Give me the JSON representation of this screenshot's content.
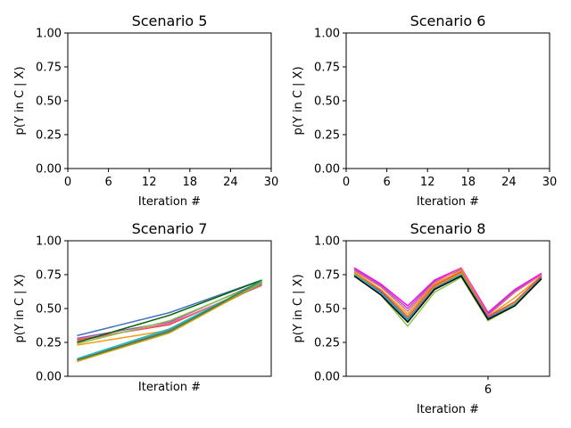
{
  "chart_data": [
    {
      "type": "line",
      "title": "Scenario 5",
      "xlabel": "Iteration #",
      "ylabel": "p(Y in C | X)",
      "xlim": [
        0,
        30
      ],
      "ylim": [
        0,
        1
      ],
      "xticks": [
        0,
        6,
        12,
        18,
        24,
        30
      ],
      "yticks": [
        0.0,
        0.25,
        0.5,
        0.75,
        1.0
      ],
      "ytick_labels": [
        "0.00",
        "0.25",
        "0.50",
        "0.75",
        "1.00"
      ],
      "x": [],
      "series": []
    },
    {
      "type": "line",
      "title": "Scenario 6",
      "xlabel": "Iteration #",
      "ylabel": "p(Y in C | X)",
      "xlim": [
        0,
        30
      ],
      "ylim": [
        0,
        1
      ],
      "xticks": [
        0,
        6,
        12,
        18,
        24,
        30
      ],
      "yticks": [
        0.0,
        0.25,
        0.5,
        0.75,
        1.0
      ],
      "ytick_labels": [
        "0.00",
        "0.25",
        "0.50",
        "0.75",
        "1.00"
      ],
      "x": [],
      "series": []
    },
    {
      "type": "line",
      "title": "Scenario 7",
      "xlabel": "Iteration #",
      "ylabel": "p(Y in C | X)",
      "xlim": [
        -0.1,
        2.1
      ],
      "ylim": [
        0,
        1
      ],
      "xticks": [],
      "yticks": [
        0.0,
        0.25,
        0.5,
        0.75,
        1.0
      ],
      "ytick_labels": [
        "0.00",
        "0.25",
        "0.50",
        "0.75",
        "1.00"
      ],
      "x": [
        0,
        1,
        2
      ],
      "series": [
        {
          "color": "#4472c4",
          "values": [
            0.3,
            0.47,
            0.71
          ]
        },
        {
          "color": "#9b59b6",
          "values": [
            0.28,
            0.4,
            0.7
          ]
        },
        {
          "color": "#e74c3c",
          "values": [
            0.27,
            0.38,
            0.68
          ]
        },
        {
          "color": "#f06292",
          "values": [
            0.26,
            0.39,
            0.67
          ]
        },
        {
          "color": "#006400",
          "values": [
            0.25,
            0.45,
            0.71
          ]
        },
        {
          "color": "#8bc34a",
          "values": [
            0.24,
            0.41,
            0.69
          ]
        },
        {
          "color": "#f39c12",
          "values": [
            0.23,
            0.34,
            0.7
          ]
        },
        {
          "color": "#17becf",
          "values": [
            0.13,
            0.35,
            0.7
          ]
        },
        {
          "color": "#7f7f7f",
          "values": [
            0.12,
            0.34,
            0.68
          ]
        },
        {
          "color": "#556b2f",
          "values": [
            0.12,
            0.33,
            0.69
          ]
        },
        {
          "color": "#2e8b57",
          "values": [
            0.11,
            0.33,
            0.71
          ]
        },
        {
          "color": "#d4a017",
          "values": [
            0.11,
            0.32,
            0.69
          ]
        }
      ]
    },
    {
      "type": "line",
      "title": "Scenario 8",
      "xlabel": "Iteration #",
      "ylabel": "p(Y in C | X)",
      "xlim": [
        0.7,
        8.3
      ],
      "ylim": [
        0,
        1
      ],
      "xticks": [
        6
      ],
      "yticks": [
        0.0,
        0.25,
        0.5,
        0.75,
        1.0
      ],
      "ytick_labels": [
        "0.00",
        "0.25",
        "0.50",
        "0.75",
        "1.00"
      ],
      "x": [
        1,
        2,
        3,
        4,
        5,
        6,
        7,
        8
      ],
      "series": [
        {
          "color": "#ff00ff",
          "values": [
            0.8,
            0.68,
            0.52,
            0.71,
            0.8,
            0.47,
            0.64,
            0.76
          ]
        },
        {
          "color": "#9b59b6",
          "values": [
            0.79,
            0.67,
            0.5,
            0.7,
            0.79,
            0.46,
            0.63,
            0.75
          ]
        },
        {
          "color": "#f06292",
          "values": [
            0.78,
            0.66,
            0.48,
            0.69,
            0.8,
            0.45,
            0.62,
            0.75
          ]
        },
        {
          "color": "#f39c12",
          "values": [
            0.77,
            0.64,
            0.46,
            0.68,
            0.78,
            0.44,
            0.58,
            0.74
          ]
        },
        {
          "color": "#e74c3c",
          "values": [
            0.76,
            0.63,
            0.44,
            0.67,
            0.77,
            0.44,
            0.55,
            0.74
          ]
        },
        {
          "color": "#d4a017",
          "values": [
            0.76,
            0.62,
            0.43,
            0.66,
            0.76,
            0.43,
            0.54,
            0.73
          ]
        },
        {
          "color": "#4472c4",
          "values": [
            0.75,
            0.62,
            0.42,
            0.65,
            0.75,
            0.43,
            0.53,
            0.73
          ]
        },
        {
          "color": "#17becf",
          "values": [
            0.75,
            0.61,
            0.41,
            0.64,
            0.75,
            0.42,
            0.53,
            0.72
          ]
        },
        {
          "color": "#8bc34a",
          "values": [
            0.74,
            0.6,
            0.37,
            0.62,
            0.73,
            0.41,
            0.52,
            0.72
          ]
        },
        {
          "color": "#000000",
          "values": [
            0.74,
            0.6,
            0.4,
            0.64,
            0.74,
            0.42,
            0.52,
            0.72
          ]
        }
      ]
    }
  ]
}
